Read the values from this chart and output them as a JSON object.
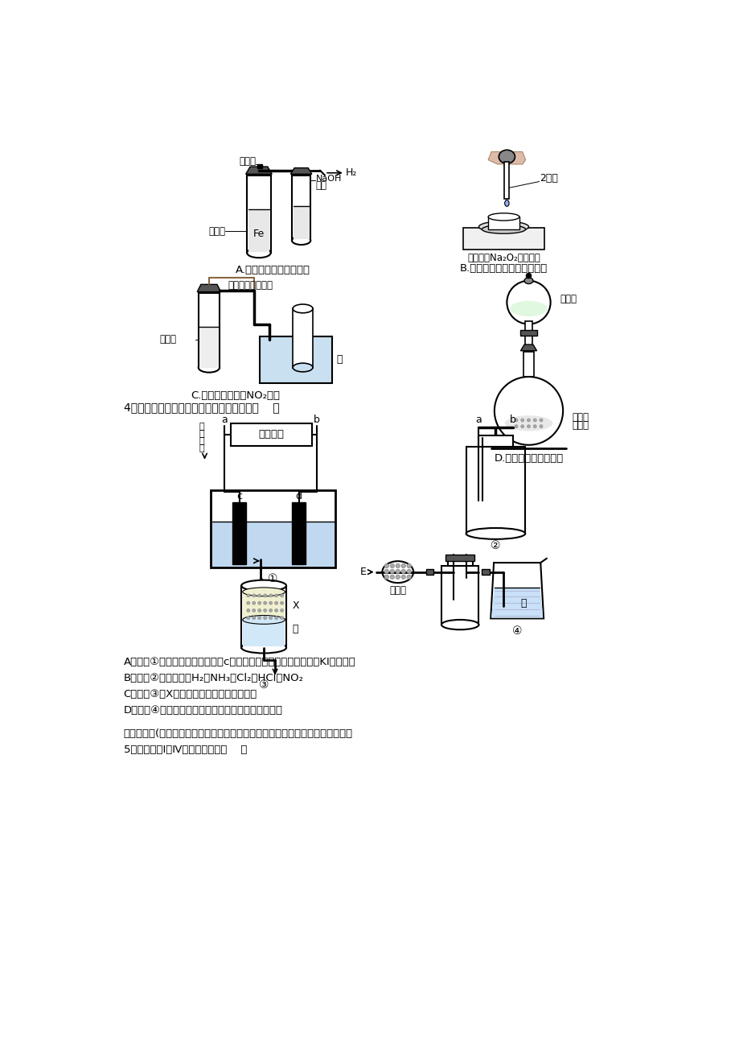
{
  "bg_color": "#ffffff",
  "text_color": "#000000",
  "line_color": "#000000",
  "page_width": 9.2,
  "page_height": 13.02,
  "section3_label": "4．关于下列各装置图的叙述中，错误的是（    ）",
  "section2_label": "二、选择题(本题包括２小题，每小题８分，共１６分，每小题有两个正确答案）",
  "section2_q5": "5．下列实验Ⅰ～Ⅳ中，正确的是（    ）",
  "option_A": "A．装置①用来电解饱和食盐水，c电极产生的气体能使湿润的淀粉KI试纸变蓝",
  "option_B": "B．装置②可用于收集H₂、NH₃、Cl₂、HCl、NO₂",
  "option_C": "C．装置③中X为苯，可用于吸收氨气或氯气",
  "option_D": "D．装置④可用于干燥、收集氨气、并吸收多余的氨气",
  "label_A_desc": "A.制备并观察氢氧化亚铁",
  "label_B_desc": "B.证明过氧化钠与水反应放热",
  "label_C_desc": "C.制备并收集少量NO₂气体",
  "label_D_desc": "D.实验室制备少量氨气",
  "zhi_shui_jia": "止水夹",
  "xi_liu_suan": "稀硫酸",
  "naoh_sol": "NaOH\n溶液",
  "nong_xiao_suan": "浓硝酸",
  "ke_shang_xia": "可上下移动的铜丝",
  "shui": "水",
  "nong_an_shui": "浓氨水",
  "qing_yang_hua": "氢氧化",
  "na_gu_ti": "钠固体",
  "bao_you": "包有足量Na₂O₂的脱脂棉",
  "liang_di_shui": "2滴水",
  "jian_shi_hui": "碱石灰",
  "dian_liu_fang": "电\n流\n方\n向",
  "E_label": "E"
}
